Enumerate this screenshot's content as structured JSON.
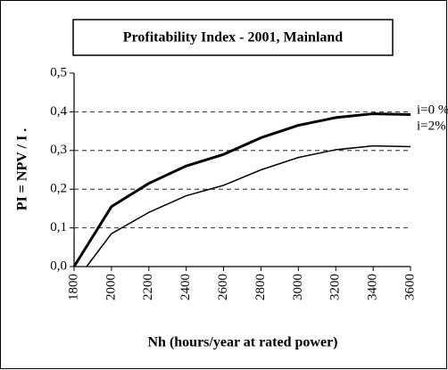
{
  "chart_data": {
    "type": "line",
    "title": "Profitability Index - 2001,  Mainland",
    "x_label": "Nh (hours/year at rated power)",
    "y_label": "PI = NPV / I .",
    "xlim": [
      1800,
      3600
    ],
    "xticks": [
      1800,
      2000,
      2200,
      2400,
      2600,
      2800,
      3000,
      3200,
      3400,
      3600
    ],
    "ylim": [
      0,
      0.5
    ],
    "yticks": [
      {
        "value": 0,
        "label": "0,0"
      },
      {
        "value": 0.1,
        "label": "0,1"
      },
      {
        "value": 0.2,
        "label": "0,2"
      },
      {
        "value": 0.3,
        "label": "0,3"
      },
      {
        "value": 0.4,
        "label": "0,4"
      },
      {
        "value": 0.5,
        "label": "0,5"
      }
    ],
    "grid": true,
    "series": [
      {
        "name": "i=0 %",
        "color": "#000000",
        "width": 3,
        "x": [
          1800,
          2000,
          2200,
          2400,
          2600,
          2800,
          3000,
          3200,
          3400,
          3600
        ],
        "values": [
          0,
          0.155,
          0.215,
          0.26,
          0.29,
          0.333,
          0.365,
          0.385,
          0.395,
          0.393
        ]
      },
      {
        "name": "i=2%",
        "color": "#000000",
        "width": 1.5,
        "x": [
          1867,
          2000,
          2200,
          2400,
          2600,
          2800,
          3000,
          3200,
          3400,
          3600
        ],
        "values": [
          0,
          0.085,
          0.14,
          0.183,
          0.21,
          0.25,
          0.282,
          0.302,
          0.312,
          0.31
        ]
      }
    ]
  }
}
